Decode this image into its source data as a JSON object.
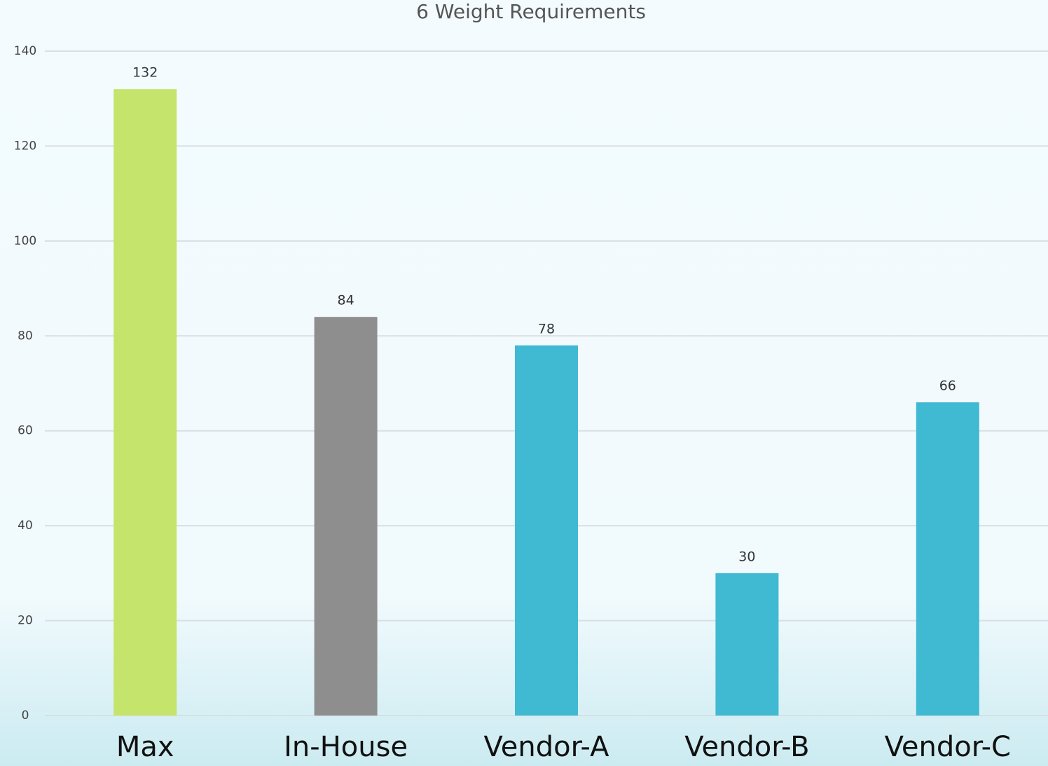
{
  "chart_data": {
    "type": "bar",
    "title": "6 Weight Requirements",
    "categories": [
      "Max",
      "In-House",
      "Vendor-A",
      "Vendor-B",
      "Vendor-C"
    ],
    "values": [
      132,
      84,
      78,
      30,
      66
    ],
    "colors": [
      "#c5e46b",
      "#8e8e8e",
      "#40b9d2",
      "#40b9d2",
      "#40b9d2"
    ],
    "ylim": [
      0,
      140
    ],
    "yticks": [
      0,
      20,
      40,
      60,
      80,
      100,
      120,
      140
    ],
    "grid": true
  }
}
